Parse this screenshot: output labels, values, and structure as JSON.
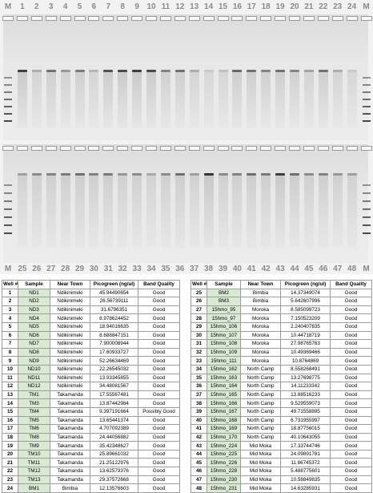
{
  "gel": {
    "top_lane_labels": [
      "M",
      "1",
      "2",
      "3",
      "4",
      "5",
      "6",
      "7",
      "8",
      "9",
      "10",
      "11",
      "12",
      "13",
      "14",
      "15",
      "16",
      "17",
      "18",
      "19",
      "20",
      "21",
      "22",
      "23",
      "24",
      "M"
    ],
    "bottom_lane_labels": [
      "M",
      "25",
      "26",
      "27",
      "28",
      "29",
      "30",
      "31",
      "32",
      "33",
      "34",
      "35",
      "36",
      "37",
      "38",
      "39",
      "40",
      "41",
      "42",
      "43",
      "44",
      "45",
      "46",
      "47",
      "48",
      "M"
    ],
    "top_band_intensity": [
      0.85,
      0.3,
      0.6,
      0.4,
      0.55,
      0.25,
      0.75,
      0.8,
      0.85,
      0.8,
      0.5,
      0.6,
      0.3,
      0.15,
      0.2,
      0.65,
      0.6,
      0.5,
      0.6,
      0.5,
      0.35,
      0.6,
      0.3,
      0.15
    ],
    "bottom_band_intensity": [
      0.35,
      0.45,
      0.5,
      0.55,
      0.6,
      0.5,
      0.55,
      0.4,
      0.45,
      0.3,
      0.45,
      0.6,
      0.35,
      0.9,
      0.45,
      0.5,
      0.6,
      0.55,
      0.85,
      0.6,
      0.45,
      0.5,
      0.4,
      0.35
    ]
  },
  "table_left": {
    "headers": [
      "Well #",
      "Sample",
      "Near Town",
      "Picogreen (ng/ul)",
      "Band Quality"
    ],
    "rows": [
      [
        "1",
        "ND1",
        "Ndikinimeki",
        "45.94490654",
        "Good"
      ],
      [
        "2",
        "ND2",
        "Ndikinimeki",
        "26.56739111",
        "Good"
      ],
      [
        "3",
        "ND3",
        "Ndikinimeki",
        "31.6796351",
        "Good"
      ],
      [
        "4",
        "ND4",
        "Ndikinimeki",
        "8.978624452",
        "Good"
      ],
      [
        "5",
        "ND5",
        "Ndikinimeki",
        "18.94016635",
        "Good"
      ],
      [
        "6",
        "ND6",
        "Ndikinimeki",
        "8.688847151",
        "Good"
      ],
      [
        "7",
        "ND7",
        "Ndikinimeki",
        "7.900008944",
        "Good"
      ],
      [
        "8",
        "ND8",
        "Ndikinimeki",
        "17.60933727",
        "Good"
      ],
      [
        "9",
        "ND9",
        "Ndikinimeki",
        "52.26634469",
        "Good"
      ],
      [
        "10",
        "ND10",
        "Ndikinimeki",
        "22.26545032",
        "Good"
      ],
      [
        "11",
        "ND11",
        "Ndikinimeki",
        "13.93345855",
        "Good"
      ],
      [
        "12",
        "ND12",
        "Ndikinimeki",
        "34.48081567",
        "Good"
      ],
      [
        "13",
        "TM1",
        "Takamanda",
        "17.55567481",
        "Good"
      ],
      [
        "14",
        "TM3",
        "Takamanda",
        "13.87442984",
        "Good"
      ],
      [
        "15",
        "TM4",
        "Takamanda",
        "9.397191664",
        "Possibly Good"
      ],
      [
        "16",
        "TM5",
        "Takamanda",
        "13.65441374",
        "Good"
      ],
      [
        "17",
        "TM6",
        "Takamanda",
        "4.707092389",
        "Good"
      ],
      [
        "18",
        "TM8",
        "Takamanda",
        "24.44056882",
        "Good"
      ],
      [
        "19",
        "TM9",
        "Takamanda",
        "35.42348627",
        "Good"
      ],
      [
        "20",
        "TM10",
        "Takamanda",
        "25.89661032",
        "Good"
      ],
      [
        "21",
        "TM11",
        "Takamanda",
        "21.25122976",
        "Good"
      ],
      [
        "22",
        "TM12",
        "Takamanda",
        "13.62579376",
        "Good"
      ],
      [
        "23",
        "TM13",
        "Takamanda",
        "29.37572668",
        "Good"
      ],
      [
        "24",
        "BM1",
        "Bimbia",
        "12.13576603",
        "Good"
      ]
    ]
  },
  "table_right": {
    "headers": [
      "Well #",
      "Sample",
      "Near Town",
      "Picogreen (ng/ul)",
      "Band Quality"
    ],
    "rows": [
      [
        "25",
        "BM2",
        "Bimbia",
        "14.37349074",
        "Good"
      ],
      [
        "26",
        "BM3",
        "Bimbia",
        "5.642607996",
        "Good"
      ],
      [
        "27",
        "15hmo_95",
        "Moroka",
        "8.585099723",
        "Good"
      ],
      [
        "28",
        "15hmo_97",
        "Moroka",
        "7.150523209",
        "Good"
      ],
      [
        "29",
        "15hmo_106",
        "Moroka",
        "2.240407835",
        "Good"
      ],
      [
        "30",
        "15hmo_107",
        "Moroka",
        "10.44718719",
        "Good"
      ],
      [
        "31",
        "15hmo_108",
        "Moroka",
        "27.98765763",
        "Good"
      ],
      [
        "32",
        "15hmo_109",
        "Moroka",
        "10.49369466",
        "Good"
      ],
      [
        "33",
        "15hmo_111",
        "Moroka",
        "10.8764869",
        "Good"
      ],
      [
        "34",
        "15hmo_162",
        "North Camp",
        "8.558268491",
        "Good"
      ],
      [
        "35",
        "15hmo_163",
        "North Camp",
        "13.27698775",
        "Good"
      ],
      [
        "36",
        "15hmo_164",
        "North Camp",
        "14.11233342",
        "Good"
      ],
      [
        "37",
        "15hmo_165",
        "North Camp",
        "13.88516233",
        "Good"
      ],
      [
        "38",
        "15hmo_166",
        "North Camp",
        "9.529559073",
        "Good"
      ],
      [
        "39",
        "15hmo_167",
        "North Camp",
        "49.71558895",
        "Good"
      ],
      [
        "40",
        "15hmo_168",
        "North Camp",
        "6.731955997",
        "Good"
      ],
      [
        "41",
        "15hmo_169",
        "North Camp",
        "18.87756015",
        "Good"
      ],
      [
        "42",
        "15hmo_170",
        "North Camp",
        "40.10643055",
        "Good"
      ],
      [
        "43",
        "15hmo_224",
        "Mid Moka",
        "17.33744746",
        "Good"
      ],
      [
        "44",
        "15hmo_225",
        "Mid Moka",
        "24.09891781",
        "Good"
      ],
      [
        "45",
        "15hmo_226",
        "Mid Moka",
        "11.86745372",
        "Good"
      ],
      [
        "46",
        "15hmo_228",
        "Mid Moka",
        "5.488775601",
        "Good"
      ],
      [
        "47",
        "15hmo_230",
        "Mid Moka",
        "10.58849835",
        "Good"
      ],
      [
        "48",
        "15hmo_231",
        "Mid Moka",
        "14.63285931",
        "Good"
      ]
    ]
  }
}
